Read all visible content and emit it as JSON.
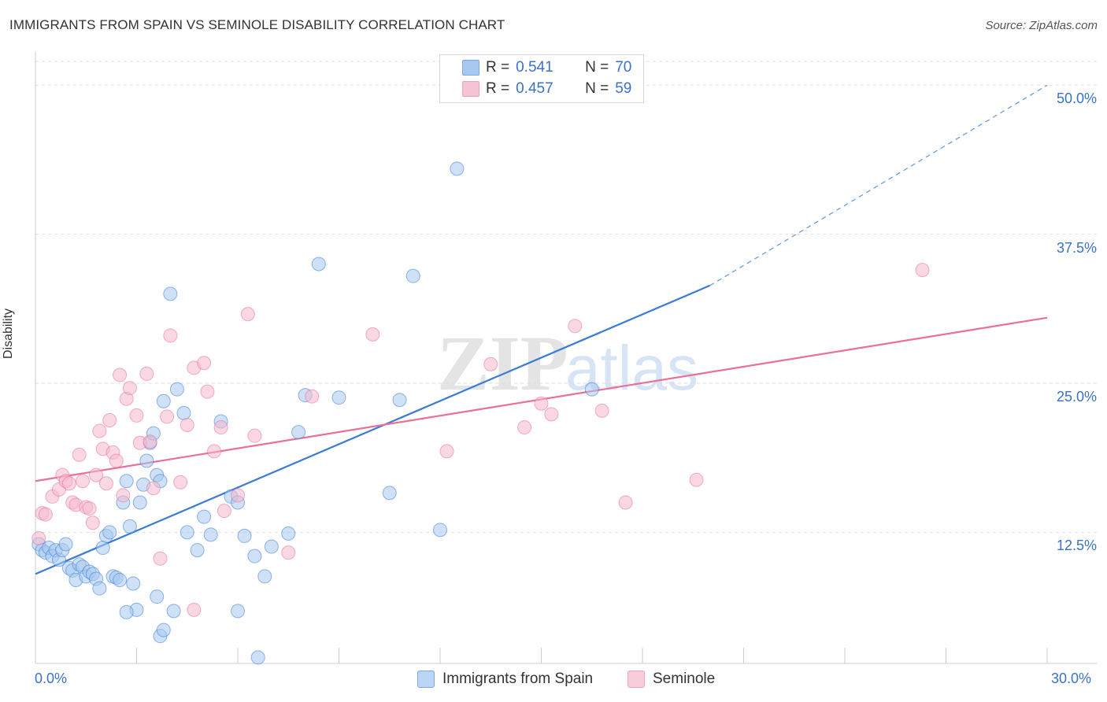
{
  "title": "IMMIGRANTS FROM SPAIN VS SEMINOLE DISABILITY CORRELATION CHART",
  "source": "Source: ZipAtlas.com",
  "watermark": {
    "zip": "ZIP",
    "atlas": "atlas"
  },
  "legend": {
    "rows": [
      {
        "r_label": "R =",
        "r_value": "0.541",
        "n_label": "N =",
        "n_value": "70",
        "color": "#a8c8f0"
      },
      {
        "r_label": "R =",
        "r_value": "0.457",
        "n_label": "N =",
        "n_value": "59",
        "color": "#f5b8cc"
      }
    ]
  },
  "bottom_legend": [
    {
      "label": "Immigrants from Spain",
      "color": "#a8c8f0"
    },
    {
      "label": "Seminole",
      "color": "#f5b8cc"
    }
  ],
  "chart_data": {
    "type": "scatter",
    "title": "IMMIGRANTS FROM SPAIN VS SEMINOLE DISABILITY CORRELATION CHART",
    "xlabel": "",
    "ylabel": "Disability",
    "xlim": [
      0,
      30
    ],
    "ylim": [
      1.5,
      52
    ],
    "x_ticks": [
      "0.0%",
      "30.0%"
    ],
    "y_ticks": [
      "12.5%",
      "25.0%",
      "37.5%",
      "50.0%"
    ],
    "y_tick_values": [
      12.5,
      25.0,
      37.5,
      50.0
    ],
    "grid": "horizontal dashed",
    "legend_position": "top-center",
    "series": [
      {
        "name": "Immigrants from Spain",
        "color": "#3a7bd5",
        "fill": "#a8c8f0",
        "trend": {
          "x": [
            0,
            20
          ],
          "y": [
            9.0,
            33.2
          ],
          "dashed_to": [
            30,
            50.0
          ]
        },
        "points": [
          [
            0.1,
            11.5
          ],
          [
            0.2,
            11.0
          ],
          [
            0.3,
            10.8
          ],
          [
            0.4,
            11.2
          ],
          [
            0.5,
            10.5
          ],
          [
            0.6,
            11.0
          ],
          [
            0.7,
            10.2
          ],
          [
            0.8,
            11.0
          ],
          [
            0.9,
            11.5
          ],
          [
            1.0,
            9.5
          ],
          [
            1.1,
            9.3
          ],
          [
            1.2,
            8.5
          ],
          [
            1.3,
            9.8
          ],
          [
            1.4,
            9.6
          ],
          [
            1.5,
            8.8
          ],
          [
            1.6,
            9.2
          ],
          [
            1.7,
            9.0
          ],
          [
            1.8,
            8.6
          ],
          [
            1.9,
            7.8
          ],
          [
            2.0,
            11.2
          ],
          [
            2.1,
            12.2
          ],
          [
            2.2,
            12.5
          ],
          [
            2.3,
            8.8
          ],
          [
            2.4,
            8.7
          ],
          [
            2.5,
            8.5
          ],
          [
            2.6,
            15.0
          ],
          [
            2.7,
            16.8
          ],
          [
            2.8,
            13.0
          ],
          [
            2.9,
            8.2
          ],
          [
            3.0,
            6.0
          ],
          [
            3.1,
            15.0
          ],
          [
            3.2,
            16.5
          ],
          [
            3.3,
            18.5
          ],
          [
            3.4,
            20.0
          ],
          [
            3.5,
            20.8
          ],
          [
            3.6,
            17.3
          ],
          [
            3.7,
            16.8
          ],
          [
            3.8,
            23.5
          ],
          [
            4.0,
            32.5
          ],
          [
            4.2,
            24.5
          ],
          [
            4.4,
            22.5
          ],
          [
            4.5,
            12.5
          ],
          [
            4.8,
            11.0
          ],
          [
            5.0,
            13.8
          ],
          [
            5.2,
            12.3
          ],
          [
            5.5,
            21.8
          ],
          [
            5.8,
            15.5
          ],
          [
            6.0,
            15.0
          ],
          [
            6.2,
            12.2
          ],
          [
            6.5,
            10.5
          ],
          [
            6.8,
            8.8
          ],
          [
            7.0,
            11.3
          ],
          [
            7.5,
            12.4
          ],
          [
            7.8,
            20.9
          ],
          [
            8.0,
            24.0
          ],
          [
            8.4,
            35.0
          ],
          [
            9.0,
            23.8
          ],
          [
            10.5,
            15.8
          ],
          [
            10.8,
            23.6
          ],
          [
            11.2,
            34.0
          ],
          [
            12.0,
            12.7
          ],
          [
            12.5,
            43.0
          ],
          [
            16.5,
            24.5
          ],
          [
            3.6,
            7.1
          ],
          [
            2.7,
            5.8
          ],
          [
            3.7,
            3.8
          ],
          [
            3.8,
            4.3
          ],
          [
            4.1,
            5.9
          ],
          [
            6.0,
            5.9
          ],
          [
            6.6,
            2.0
          ]
        ]
      },
      {
        "name": "Seminole",
        "color": "#e8709a",
        "fill": "#f5b8cc",
        "trend": {
          "x": [
            0,
            30
          ],
          "y": [
            16.8,
            30.5
          ]
        },
        "points": [
          [
            0.1,
            12.0
          ],
          [
            0.2,
            14.1
          ],
          [
            0.3,
            14.0
          ],
          [
            0.5,
            15.5
          ],
          [
            0.7,
            16.1
          ],
          [
            0.8,
            17.3
          ],
          [
            0.9,
            16.8
          ],
          [
            1.0,
            16.6
          ],
          [
            1.1,
            15.0
          ],
          [
            1.2,
            14.8
          ],
          [
            1.3,
            19.0
          ],
          [
            1.4,
            16.8
          ],
          [
            1.5,
            14.6
          ],
          [
            1.6,
            14.5
          ],
          [
            1.7,
            13.3
          ],
          [
            1.8,
            17.3
          ],
          [
            1.9,
            21.0
          ],
          [
            2.0,
            19.5
          ],
          [
            2.1,
            16.6
          ],
          [
            2.2,
            21.9
          ],
          [
            2.3,
            19.2
          ],
          [
            2.4,
            18.5
          ],
          [
            2.5,
            25.7
          ],
          [
            2.6,
            15.6
          ],
          [
            2.7,
            23.7
          ],
          [
            2.8,
            24.6
          ],
          [
            3.0,
            22.3
          ],
          [
            3.1,
            20.0
          ],
          [
            3.3,
            25.8
          ],
          [
            3.5,
            16.2
          ],
          [
            3.7,
            10.3
          ],
          [
            3.9,
            22.2
          ],
          [
            4.0,
            29.0
          ],
          [
            4.3,
            16.7
          ],
          [
            4.7,
            26.3
          ],
          [
            5.0,
            26.7
          ],
          [
            5.1,
            24.3
          ],
          [
            5.3,
            19.3
          ],
          [
            5.5,
            21.3
          ],
          [
            5.6,
            14.3
          ],
          [
            6.0,
            15.6
          ],
          [
            6.3,
            30.8
          ],
          [
            6.5,
            20.6
          ],
          [
            7.5,
            10.8
          ],
          [
            8.2,
            23.9
          ],
          [
            10.0,
            29.1
          ],
          [
            12.2,
            19.3
          ],
          [
            13.5,
            26.6
          ],
          [
            14.5,
            21.3
          ],
          [
            15.0,
            23.3
          ],
          [
            15.3,
            22.4
          ],
          [
            16.0,
            29.8
          ],
          [
            16.8,
            22.7
          ],
          [
            17.5,
            15.0
          ],
          [
            19.6,
            16.9
          ],
          [
            26.3,
            34.5
          ],
          [
            4.7,
            6.0
          ],
          [
            4.5,
            21.5
          ],
          [
            3.4,
            20.1
          ]
        ]
      }
    ]
  }
}
